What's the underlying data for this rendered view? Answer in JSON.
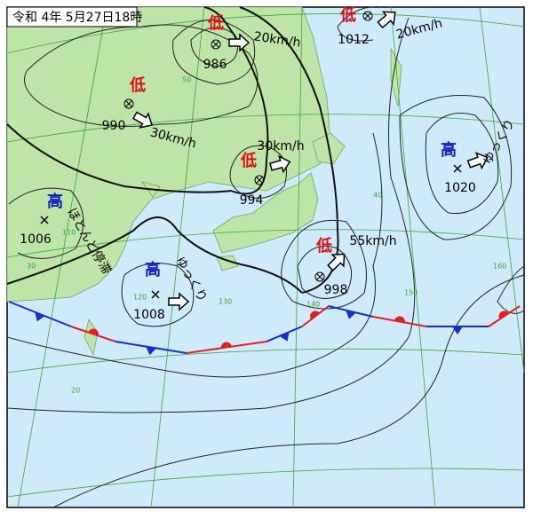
{
  "title": "令和 4年 5月27日18時",
  "systems": [
    {
      "symbol": "低",
      "pressure": 986,
      "motion": "20km/h"
    },
    {
      "symbol": "低",
      "pressure": 1012,
      "motion": "20km/h"
    },
    {
      "symbol": "低",
      "pressure": 990,
      "motion": "30km/h"
    },
    {
      "symbol": "低",
      "pressure": 994,
      "motion": "30km/h"
    },
    {
      "symbol": "低",
      "pressure": 998,
      "motion": "55km/h"
    },
    {
      "symbol": "高",
      "pressure": 1006,
      "motion": "ほとんど停滞"
    },
    {
      "symbol": "高",
      "pressure": 1008,
      "motion": "ゆっくり"
    },
    {
      "symbol": "高",
      "pressure": 1020,
      "motion": "ゆっくり"
    }
  ],
  "grid_labels": [
    "50",
    "40",
    "30",
    "20",
    "110",
    "120",
    "130",
    "140",
    "150",
    "160"
  ]
}
